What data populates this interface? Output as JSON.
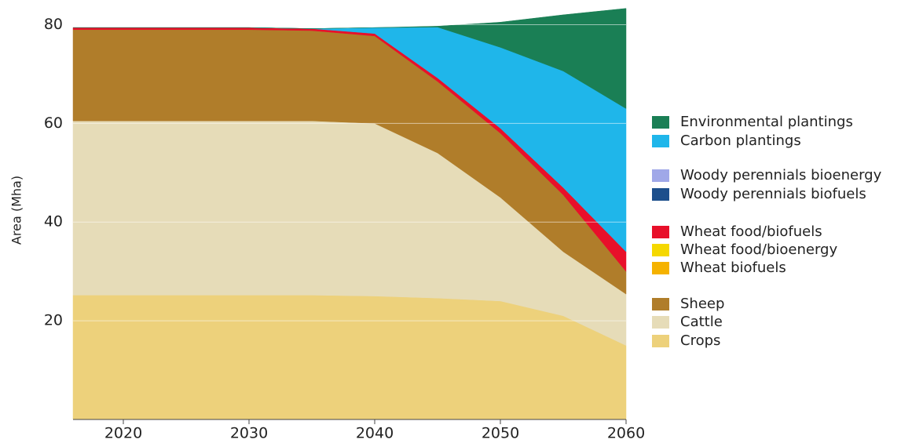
{
  "chart_data": {
    "type": "stacked_area",
    "y_label": "Area (Mha)",
    "x": [
      2016,
      2020,
      2025,
      2030,
      2035,
      2040,
      2045,
      2050,
      2055,
      2060
    ],
    "xlim": [
      2016,
      2060
    ],
    "xticks": [
      2020,
      2030,
      2040,
      2050,
      2060
    ],
    "ylim": [
      0,
      85
    ],
    "yticks": [
      20,
      40,
      60,
      80
    ],
    "grid": true,
    "series": [
      {
        "name": "Crops",
        "color": "#edd17b",
        "values": [
          25.2,
          25.2,
          25.2,
          25.2,
          25.2,
          25,
          24.6,
          24,
          21,
          15
        ]
      },
      {
        "name": "Cattle",
        "color": "#e6dcb8",
        "values": [
          35.3,
          35.3,
          35.3,
          35.3,
          35.3,
          35,
          29.4,
          21,
          13,
          10.4
        ]
      },
      {
        "name": "Sheep",
        "color": "#b07d2a",
        "values": [
          18.5,
          18.5,
          18.5,
          18.5,
          18.3,
          17.7,
          14.5,
          13,
          11.5,
          4.6
        ]
      },
      {
        "name": "Wheat biofuels",
        "color": "#f5b200",
        "values": [
          0,
          0,
          0,
          0,
          0,
          0,
          0,
          0,
          0,
          0
        ]
      },
      {
        "name": "Wheat food/bioenergy",
        "color": "#f5d800",
        "values": [
          0,
          0,
          0,
          0,
          0,
          0,
          0,
          0,
          0,
          0
        ]
      },
      {
        "name": "Wheat food/biofuels",
        "color": "#e8102a",
        "values": [
          0.4,
          0.4,
          0.4,
          0.4,
          0.4,
          0.5,
          0.7,
          1,
          1.5,
          4
        ]
      },
      {
        "name": "Woody perennials biofuels",
        "color": "#1d4f8c",
        "values": [
          0,
          0,
          0,
          0,
          0,
          0,
          0,
          0,
          0,
          0
        ]
      },
      {
        "name": "Woody perennials bioenergy",
        "color": "#a0a8e8",
        "values": [
          0,
          0,
          0,
          0,
          0,
          0,
          0,
          0,
          0,
          0
        ]
      },
      {
        "name": "Carbon plantings",
        "color": "#1fb6ea",
        "values": [
          0,
          0,
          0,
          0,
          0,
          1.2,
          10.3,
          16.4,
          23.6,
          29
        ]
      },
      {
        "name": "Environmental plantings",
        "color": "#1a7f55",
        "values": [
          0,
          0,
          0,
          0,
          0,
          0,
          0.2,
          5.1,
          11.4,
          20.3
        ]
      }
    ]
  }
}
